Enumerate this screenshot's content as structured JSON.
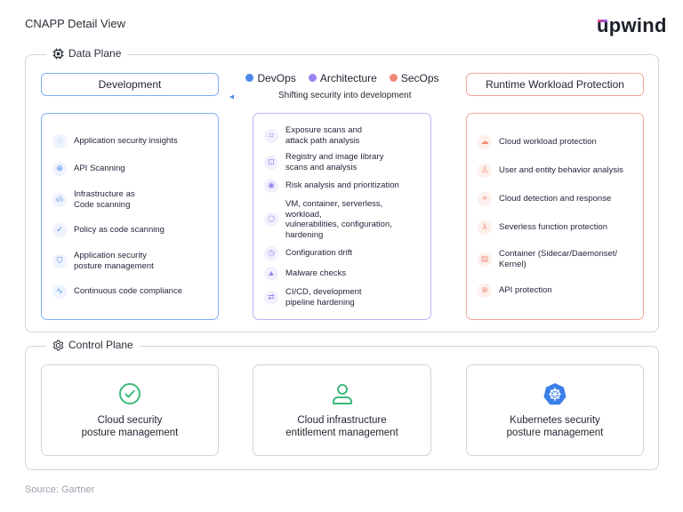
{
  "title": "CNAPP Detail View",
  "logo": "upwind",
  "colors": {
    "devops": "#4d8ae8",
    "architecture": "#9b82ef",
    "secops": "#ef8a74",
    "control_icon": "#3dbb7a"
  },
  "data_plane": {
    "label": "Data Plane",
    "icon": "chip-icon",
    "development_header": "Development",
    "runtime_header": "Runtime Workload Protection",
    "legend": [
      {
        "label": "DevOps",
        "color": "#4d8ae8"
      },
      {
        "label": "Architecture",
        "color": "#9b82ef"
      },
      {
        "label": "SecOps",
        "color": "#ef8a74"
      }
    ],
    "shift_label": "Shifting security into development",
    "development_items": [
      {
        "label": "Application security insights",
        "icon": "lightbulb-icon"
      },
      {
        "label": "API Scanning",
        "icon": "globe-icon"
      },
      {
        "label": "Infrastructure as\nCode scanning",
        "icon": "code-icon"
      },
      {
        "label": "Policy as code scanning",
        "icon": "badge-check-icon"
      },
      {
        "label": "Application security\nposture management",
        "icon": "shield-check-icon"
      },
      {
        "label": "Continuous code compliance",
        "icon": "pulse-icon"
      }
    ],
    "architecture_items": [
      {
        "label": "Exposure scans and\nattack path analysis",
        "icon": "scan-user-icon"
      },
      {
        "label": "Registry and image library\nscans and analysis",
        "icon": "scan-icon"
      },
      {
        "label": "Risk analysis and prioritization",
        "icon": "shield-dot-icon"
      },
      {
        "label": "VM, container, serverless, workload,\nvulnerabilities, configuration,\nhardening",
        "icon": "hexagon-icon"
      },
      {
        "label": "Configuration drift",
        "icon": "clock-icon"
      },
      {
        "label": "Malware checks",
        "icon": "warning-icon"
      },
      {
        "label": "CI/CD, development\npipeline hardening",
        "icon": "arrows-exchange-icon"
      }
    ],
    "runtime_items": [
      {
        "label": "Cloud workload protection",
        "icon": "cloud-icon"
      },
      {
        "label": "User and entity behavior analysis",
        "icon": "user-icon"
      },
      {
        "label": "Cloud detection and response",
        "icon": "crosshair-icon"
      },
      {
        "label": "Severless function protection",
        "icon": "lambda-icon"
      },
      {
        "label": "Container (Sidecar/Daemonset/\nKernel)",
        "icon": "container-icon"
      },
      {
        "label": "API protection",
        "icon": "globe-icon"
      }
    ]
  },
  "control_plane": {
    "label": "Control Plane",
    "icon": "gear-icon",
    "cards": [
      {
        "label": "Cloud security\nposture management",
        "icon": "check-circle-icon"
      },
      {
        "label": "Cloud infrastructure\nentitlement management",
        "icon": "user-icon"
      },
      {
        "label": "Kubernetes security\nposture management",
        "icon": "kubernetes-icon"
      }
    ]
  },
  "source": "Source: Gartner"
}
